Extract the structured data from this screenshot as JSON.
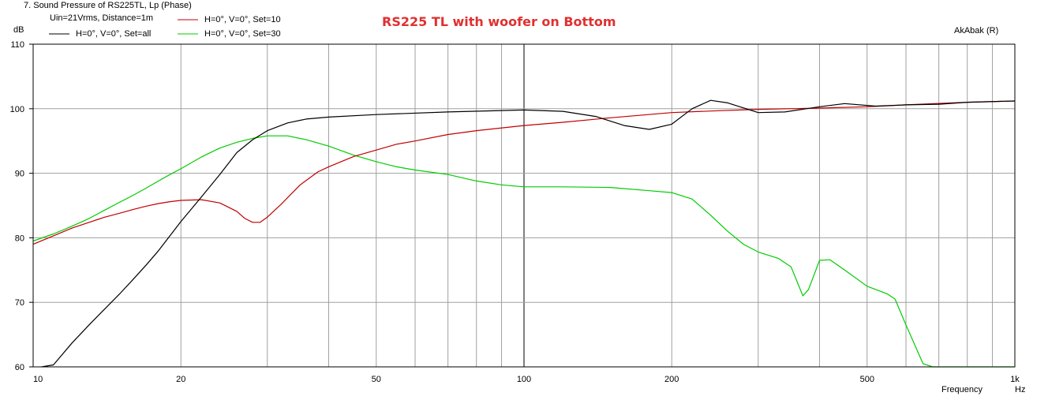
{
  "header": {
    "window_title": "7. Sound Pressure of RS225TL, Lp (Phase)",
    "info": "Uin=21Vrms, Distance=1m",
    "unit_db": "dB",
    "brand": "AkAbak (R)"
  },
  "colors": {
    "set_all": "#000000",
    "set_10": "#c00000",
    "set_30": "#00cc00",
    "title": "#e03030",
    "grid": "#a0a0a0"
  },
  "chart_data": {
    "type": "line",
    "title": "RS225 TL with woofer on Bottom",
    "xlabel": "Frequency",
    "xunit": "Hz",
    "ylabel": "dB",
    "xscale": "log",
    "xlim": [
      10,
      1000
    ],
    "ylim": [
      60,
      110
    ],
    "grid": true,
    "legend_position": "top-left",
    "x_tick_labels": [
      {
        "value": 10,
        "label": "10"
      },
      {
        "value": 20,
        "label": "20"
      },
      {
        "value": 50,
        "label": "50"
      },
      {
        "value": 100,
        "label": "100"
      },
      {
        "value": 200,
        "label": "200"
      },
      {
        "value": 500,
        "label": "500"
      },
      {
        "value": 1000,
        "label": "1k"
      }
    ],
    "y_tick_labels": [
      {
        "value": 60,
        "label": "60"
      },
      {
        "value": 70,
        "label": "70"
      },
      {
        "value": 80,
        "label": "80"
      },
      {
        "value": 90,
        "label": "90"
      },
      {
        "value": 100,
        "label": "100"
      },
      {
        "value": 110,
        "label": "110"
      }
    ],
    "series": [
      {
        "name": "H=0°, V=0°, Set=all",
        "color": "#000000",
        "points": [
          [
            10.4,
            60
          ],
          [
            11,
            60.3
          ],
          [
            12,
            63.7
          ],
          [
            13,
            66.5
          ],
          [
            14,
            69
          ],
          [
            15,
            71.3
          ],
          [
            16,
            73.6
          ],
          [
            17,
            75.8
          ],
          [
            18,
            78
          ],
          [
            20,
            82.5
          ],
          [
            22,
            86.3
          ],
          [
            24,
            89.8
          ],
          [
            26,
            93.2
          ],
          [
            28,
            95.2
          ],
          [
            30,
            96.6
          ],
          [
            33,
            97.8
          ],
          [
            36,
            98.4
          ],
          [
            40,
            98.7
          ],
          [
            50,
            99.1
          ],
          [
            70,
            99.5
          ],
          [
            100,
            99.8
          ],
          [
            120,
            99.6
          ],
          [
            140,
            98.8
          ],
          [
            160,
            97.4
          ],
          [
            180,
            96.8
          ],
          [
            200,
            97.6
          ],
          [
            220,
            100
          ],
          [
            240,
            101.3
          ],
          [
            260,
            100.9
          ],
          [
            300,
            99.4
          ],
          [
            340,
            99.5
          ],
          [
            400,
            100.3
          ],
          [
            450,
            100.8
          ],
          [
            520,
            100.4
          ],
          [
            600,
            100.6
          ],
          [
            700,
            100.7
          ],
          [
            800,
            101
          ],
          [
            1000,
            101.2
          ]
        ]
      },
      {
        "name": "H=0°, V=0°, Set=10",
        "color": "#c00000",
        "points": [
          [
            10,
            79
          ],
          [
            11,
            80.3
          ],
          [
            12,
            81.5
          ],
          [
            13,
            82.4
          ],
          [
            14,
            83.2
          ],
          [
            15,
            83.8
          ],
          [
            16,
            84.4
          ],
          [
            17,
            84.9
          ],
          [
            18,
            85.3
          ],
          [
            19,
            85.6
          ],
          [
            20,
            85.8
          ],
          [
            22,
            85.9
          ],
          [
            24,
            85.4
          ],
          [
            26,
            84.1
          ],
          [
            27,
            83
          ],
          [
            28,
            82.4
          ],
          [
            29,
            82.4
          ],
          [
            30,
            83.2
          ],
          [
            32,
            85.2
          ],
          [
            35,
            88.2
          ],
          [
            38,
            90.2
          ],
          [
            40,
            91
          ],
          [
            45,
            92.6
          ],
          [
            50,
            93.6
          ],
          [
            55,
            94.5
          ],
          [
            60,
            95
          ],
          [
            70,
            96
          ],
          [
            80,
            96.6
          ],
          [
            100,
            97.4
          ],
          [
            120,
            97.9
          ],
          [
            150,
            98.6
          ],
          [
            200,
            99.4
          ],
          [
            250,
            99.7
          ],
          [
            300,
            99.9
          ],
          [
            400,
            100.1
          ],
          [
            500,
            100.3
          ],
          [
            600,
            100.6
          ],
          [
            800,
            101
          ],
          [
            1000,
            101.2
          ]
        ]
      },
      {
        "name": "H=0°, V=0°, Set=30",
        "color": "#00cc00",
        "points": [
          [
            10,
            79.5
          ],
          [
            11,
            80.6
          ],
          [
            12,
            81.8
          ],
          [
            13,
            83
          ],
          [
            14,
            84.3
          ],
          [
            15,
            85.5
          ],
          [
            16,
            86.6
          ],
          [
            17,
            87.7
          ],
          [
            18,
            88.8
          ],
          [
            19,
            89.8
          ],
          [
            20,
            90.7
          ],
          [
            22,
            92.5
          ],
          [
            24,
            93.9
          ],
          [
            26,
            94.8
          ],
          [
            28,
            95.4
          ],
          [
            30,
            95.8
          ],
          [
            33,
            95.8
          ],
          [
            36,
            95.2
          ],
          [
            40,
            94.2
          ],
          [
            45,
            92.8
          ],
          [
            50,
            91.8
          ],
          [
            55,
            91
          ],
          [
            60,
            90.5
          ],
          [
            70,
            89.8
          ],
          [
            80,
            88.8
          ],
          [
            90,
            88.2
          ],
          [
            100,
            87.9
          ],
          [
            120,
            87.9
          ],
          [
            150,
            87.8
          ],
          [
            180,
            87.3
          ],
          [
            200,
            87
          ],
          [
            220,
            86
          ],
          [
            240,
            83.5
          ],
          [
            260,
            81
          ],
          [
            280,
            79
          ],
          [
            300,
            77.8
          ],
          [
            330,
            76.8
          ],
          [
            350,
            75.5
          ],
          [
            370,
            71
          ],
          [
            380,
            72
          ],
          [
            400,
            76.5
          ],
          [
            420,
            76.6
          ],
          [
            450,
            75
          ],
          [
            500,
            72.5
          ],
          [
            550,
            71.3
          ],
          [
            570,
            70.5
          ],
          [
            600,
            66.5
          ],
          [
            650,
            60.5
          ],
          [
            680,
            60
          ],
          [
            1000,
            60
          ]
        ]
      }
    ]
  }
}
